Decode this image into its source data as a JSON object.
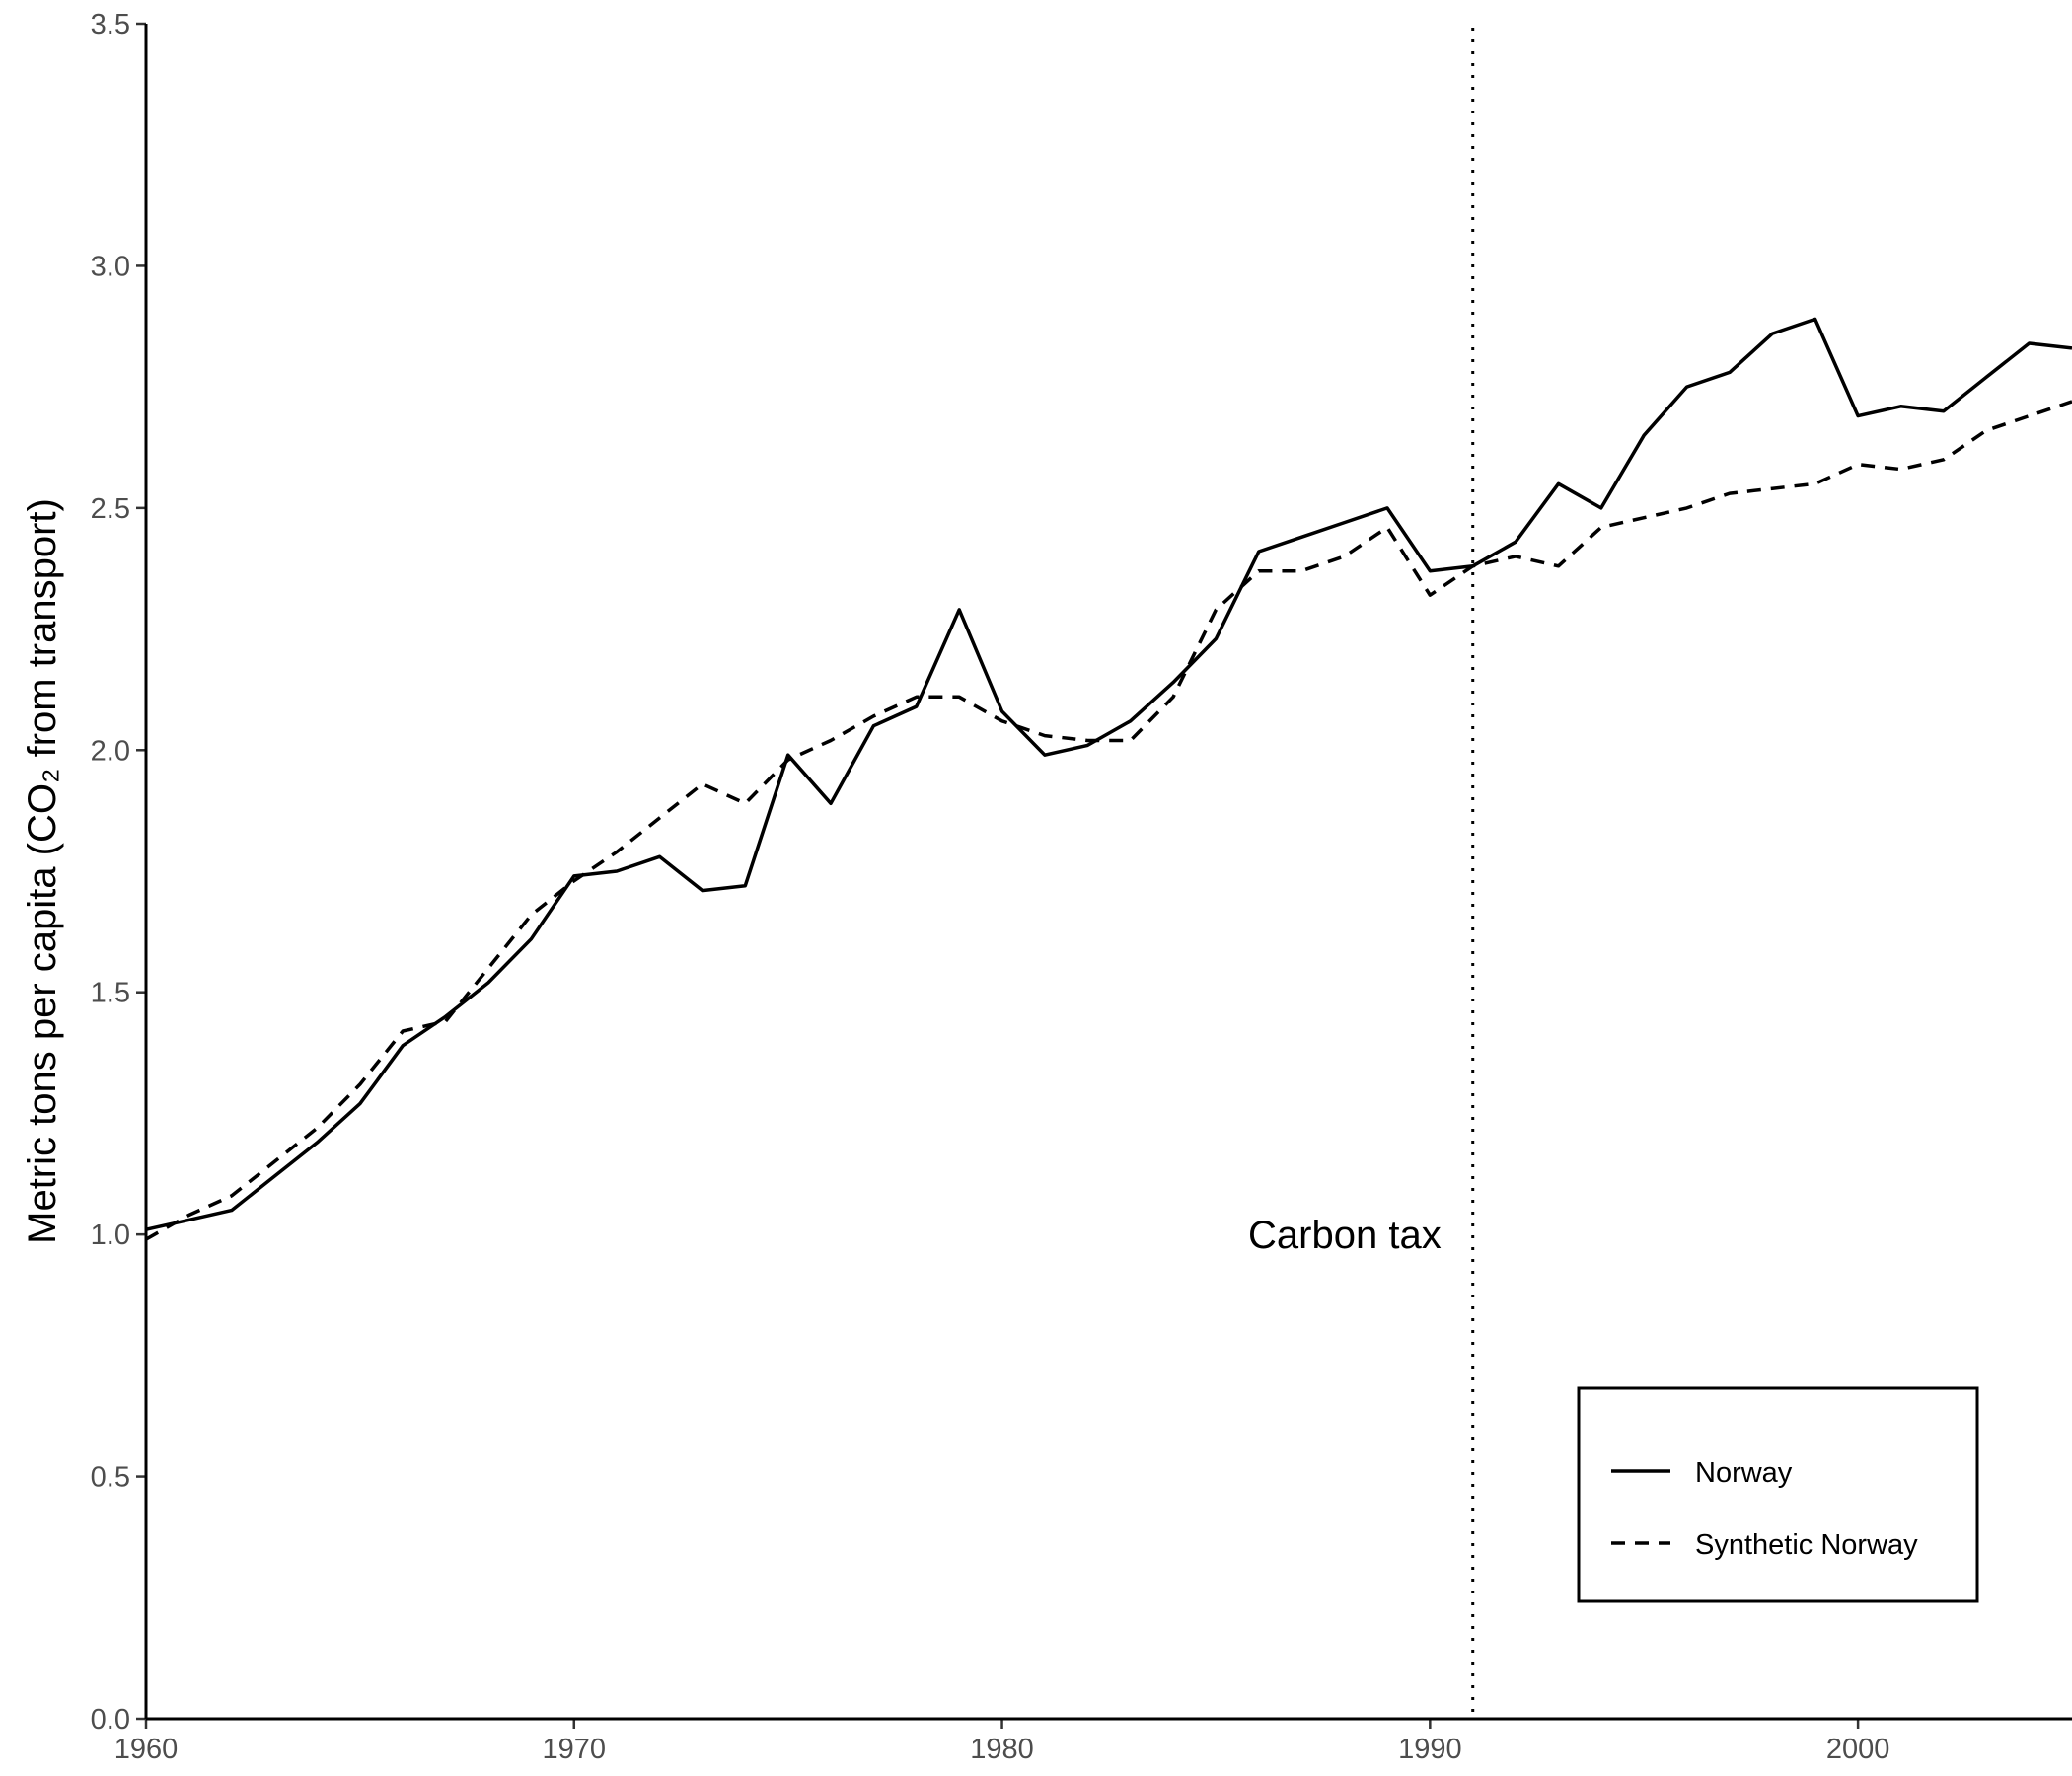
{
  "chart_data": {
    "type": "line",
    "title": "",
    "xlabel": "",
    "ylabel": "Metric tons per capita (CO₂ from transport)",
    "xlim": [
      1960,
      2005
    ],
    "ylim": [
      0,
      3.5
    ],
    "x_ticks": [
      "1960",
      "1970",
      "1980",
      "1990",
      "2000"
    ],
    "y_ticks": [
      "0.0",
      "0.5",
      "1.0",
      "1.5",
      "2.0",
      "2.5",
      "3.0",
      "3.5"
    ],
    "grid": false,
    "legend_position": "bottom-right",
    "annotation": {
      "text": "Carbon tax",
      "x": 1991,
      "line_style": "dotted"
    },
    "x": [
      1960,
      1961,
      1962,
      1963,
      1964,
      1965,
      1966,
      1967,
      1968,
      1969,
      1970,
      1971,
      1972,
      1973,
      1974,
      1975,
      1976,
      1977,
      1978,
      1979,
      1980,
      1981,
      1982,
      1983,
      1984,
      1985,
      1986,
      1987,
      1988,
      1989,
      1990,
      1991,
      1992,
      1993,
      1994,
      1995,
      1996,
      1997,
      1998,
      1999,
      2000,
      2001,
      2002,
      2003,
      2004,
      2005
    ],
    "series": [
      {
        "name": "Norway",
        "style": "solid",
        "values": [
          1.01,
          1.03,
          1.05,
          1.12,
          1.19,
          1.27,
          1.39,
          1.45,
          1.52,
          1.61,
          1.74,
          1.75,
          1.78,
          1.71,
          1.72,
          1.99,
          1.89,
          2.05,
          2.09,
          2.29,
          2.08,
          1.99,
          2.01,
          2.06,
          2.14,
          2.23,
          2.41,
          2.44,
          2.47,
          2.5,
          2.37,
          2.38,
          2.43,
          2.55,
          2.5,
          2.65,
          2.75,
          2.78,
          2.86,
          2.89,
          2.69,
          2.71,
          2.7,
          2.77,
          2.84,
          2.83
        ]
      },
      {
        "name": "Synthetic Norway",
        "style": "dashed",
        "values": [
          0.99,
          1.04,
          1.08,
          1.15,
          1.22,
          1.31,
          1.42,
          1.44,
          1.55,
          1.66,
          1.73,
          1.79,
          1.86,
          1.93,
          1.89,
          1.98,
          2.02,
          2.07,
          2.11,
          2.11,
          2.06,
          2.03,
          2.02,
          2.02,
          2.11,
          2.29,
          2.37,
          2.37,
          2.4,
          2.46,
          2.32,
          2.38,
          2.4,
          2.38,
          2.46,
          2.48,
          2.5,
          2.53,
          2.54,
          2.55,
          2.59,
          2.58,
          2.6,
          2.66,
          2.69,
          2.72
        ]
      }
    ]
  }
}
